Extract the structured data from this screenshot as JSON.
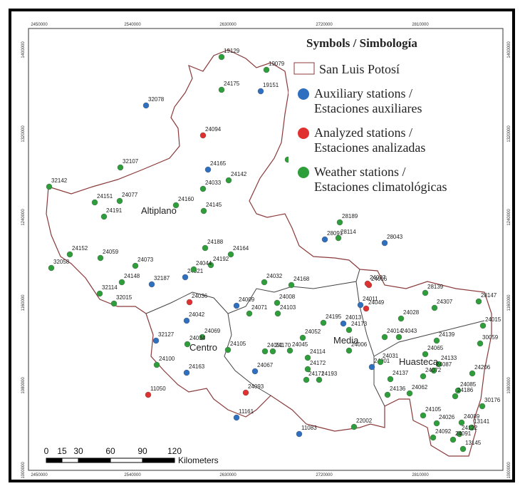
{
  "axes": {
    "x_ticks": [
      "2450000",
      "2540000",
      "2630000",
      "2720000",
      "2810000"
    ],
    "y_ticks": [
      "1400000",
      "1320000",
      "1240000",
      "1160000",
      "1080000",
      "1000000"
    ]
  },
  "legend": {
    "title": "Symbols / Simbología",
    "boundary": "San Luis Potosí",
    "items": [
      {
        "label": [
          "Auxiliary stations /",
          "Estaciones auxiliares"
        ],
        "color": "#2e6fc0",
        "stations": [
          "32078",
          "24165",
          "19151",
          "28091",
          "28043",
          "32187",
          "24021",
          "24013",
          "24011",
          "24009",
          "32127",
          "24042",
          "24163",
          "24067",
          "11161",
          "11083",
          "24001"
        ]
      },
      {
        "label": [
          "Analyzed stations /",
          "Estaciones analizadas"
        ],
        "color": "#e03030",
        "stations": [
          "24094",
          "24036",
          "11050",
          "24093",
          "24016",
          "24049",
          "24027"
        ]
      },
      {
        "label": [
          "Weather stations /",
          "Estaciones climatológicas"
        ],
        "color": "#2e9e3a",
        "stations": [
          "19129",
          "19079",
          "24175",
          "19075",
          "24033",
          "24142",
          "32107",
          "32142",
          "24151",
          "24077",
          "24160",
          "24145",
          "24191",
          "28189",
          "28114",
          "24188",
          "24164",
          "24192",
          "24044",
          "24152",
          "24059",
          "24073",
          "32058",
          "24148",
          "32114",
          "32015",
          "24032",
          "24168",
          "24008",
          "24103",
          "24071",
          "24195",
          "24173",
          "24052",
          "24069",
          "24034",
          "24105",
          "24051",
          "24170",
          "24045",
          "24114",
          "24006",
          "24172",
          "24171",
          "24193",
          "24100",
          "28139",
          "28147",
          "24307",
          "24028",
          "24015",
          "24014",
          "24043",
          "24139",
          "30059",
          "24065",
          "24031",
          "24133",
          "24087",
          "24137",
          "24072",
          "24206",
          "24136",
          "24062",
          "24085",
          "24186",
          "30176",
          "24105",
          "24026",
          "24089",
          "13141",
          "24092",
          "24122",
          "24091",
          "13145",
          "22002"
        ]
      }
    ]
  },
  "regions": [
    "Altiplano",
    "Media",
    "Centro",
    "Huasteca"
  ],
  "scale_bar": {
    "ticks": [
      "0",
      "15",
      "30",
      "60",
      "90",
      "120"
    ],
    "unit": "Kilometers"
  }
}
